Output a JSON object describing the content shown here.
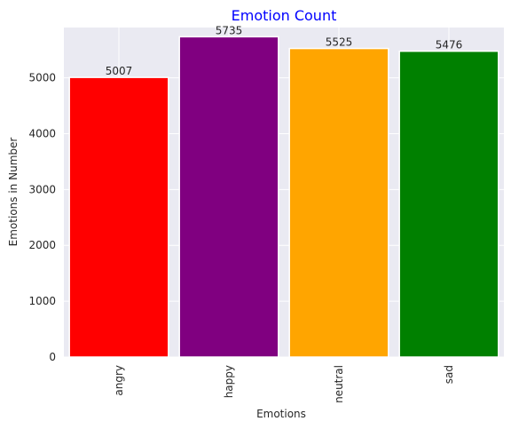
{
  "chart_data": {
    "type": "bar",
    "title": "Emotion Count",
    "xlabel": "Emotions",
    "ylabel": "Emotions in Number",
    "categories": [
      "angry",
      "happy",
      "neutral",
      "sad"
    ],
    "values": [
      5007,
      5735,
      5525,
      5476
    ],
    "data_labels": [
      "5007",
      "5735",
      "5525",
      "5476"
    ],
    "colors": [
      "#ff0000",
      "#800080",
      "#ffa500",
      "#008000"
    ],
    "yticks": [
      0,
      1000,
      2000,
      3000,
      4000,
      5000
    ],
    "ylim": [
      0,
      5900
    ],
    "grid": true,
    "background": "#eaeaf2",
    "title_color": "#0000ff",
    "x_tick_rotation": "vertical"
  }
}
